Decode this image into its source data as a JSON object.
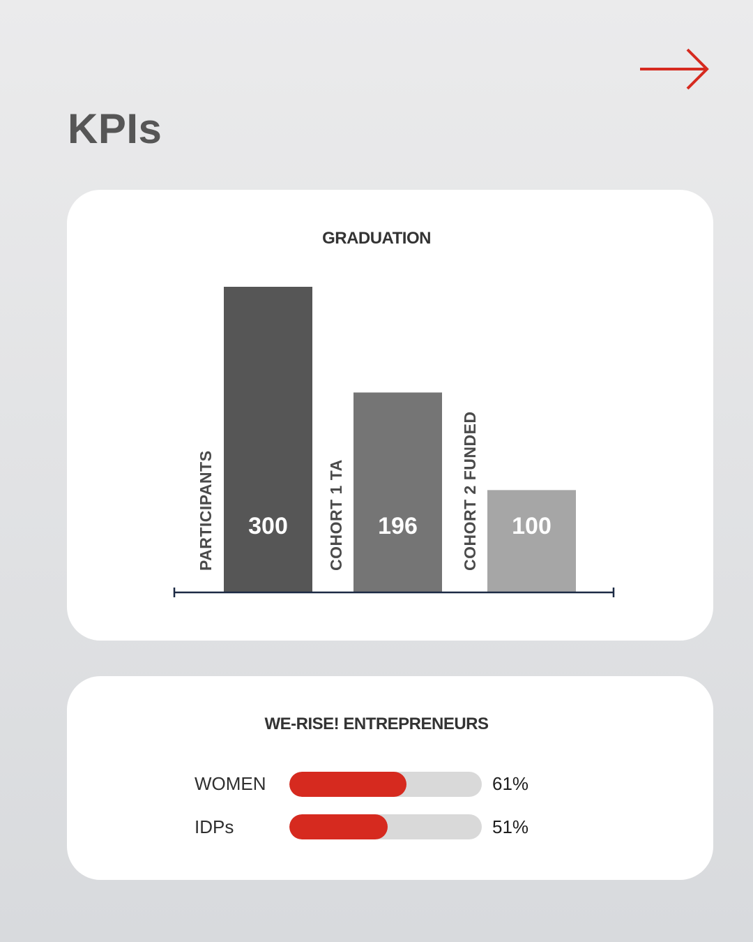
{
  "page": {
    "title": "KPIs",
    "accent_color": "#d62a1f",
    "next_icon": "arrow-right-icon"
  },
  "chart_data": [
    {
      "type": "bar",
      "title": "GRADUATION",
      "categories": [
        "PARTICIPANTS",
        "COHORT 1 TA",
        "COHORT 2 FUNDED"
      ],
      "values": [
        300,
        196,
        100
      ],
      "value_labels": [
        "300",
        "196",
        "100"
      ],
      "colors": [
        "#565656",
        "#757575",
        "#a6a6a6"
      ],
      "ylim": [
        0,
        300
      ],
      "grid": false,
      "xlabel": "",
      "ylabel": ""
    },
    {
      "type": "bar",
      "orientation": "horizontal",
      "title": "WE-RISE! ENTREPRENEURS",
      "categories": [
        "WOMEN",
        "IDPs"
      ],
      "values": [
        61,
        51
      ],
      "value_labels": [
        "61%",
        "51%"
      ],
      "xlim": [
        0,
        100
      ],
      "fill_color": "#d62a1f",
      "track_color": "#d9d9d9"
    }
  ]
}
